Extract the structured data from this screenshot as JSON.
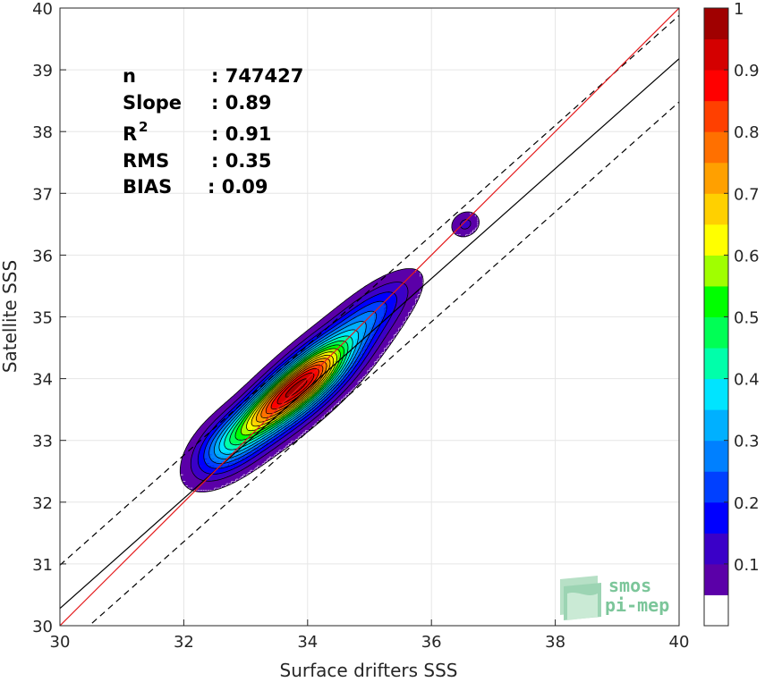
{
  "chart_data": {
    "type": "heatmap",
    "title": "",
    "xlabel": "Surface drifters SSS",
    "ylabel": "Satellite SSS",
    "xlim": [
      30,
      40
    ],
    "ylim": [
      30,
      40
    ],
    "x_ticks": [
      "30",
      "32",
      "34",
      "36",
      "38",
      "40"
    ],
    "y_ticks": [
      "30",
      "31",
      "32",
      "33",
      "34",
      "35",
      "36",
      "37",
      "38",
      "39",
      "40"
    ],
    "grid": true,
    "stats": [
      {
        "label": "n",
        "value": ": 747427"
      },
      {
        "label": "Slope",
        "value": ": 0.89"
      },
      {
        "label": "R",
        "sup": "2",
        "value": ": 0.91"
      },
      {
        "label": "RMS",
        "value": ": 0.35"
      },
      {
        "label": "BIAS",
        "value": ": 0.09"
      }
    ],
    "lines": {
      "identity": {
        "slope": 1.0,
        "intercept": 0.0,
        "color": "#e41a1c"
      },
      "fit": {
        "slope": 0.89,
        "intercept": 3.58,
        "color": "#000000"
      },
      "upper_dashed": {
        "slope": 0.89,
        "intercept": 4.28,
        "color": "#000000"
      },
      "lower_dashed": {
        "slope": 0.89,
        "intercept": 2.88,
        "color": "#000000"
      }
    },
    "density_blobs": [
      {
        "cx": 33.9,
        "cy": 33.85,
        "sx": 1.0,
        "sy": 0.28,
        "angle": 42,
        "amp": 0.55
      },
      {
        "cx": 34.05,
        "cy": 34.05,
        "sx": 0.5,
        "sy": 0.22,
        "angle": 42,
        "amp": 0.55
      },
      {
        "cx": 33.4,
        "cy": 33.55,
        "sx": 0.5,
        "sy": 0.2,
        "angle": 42,
        "amp": 0.5
      },
      {
        "cx": 32.7,
        "cy": 32.95,
        "sx": 0.45,
        "sy": 0.25,
        "angle": 42,
        "amp": 0.3
      },
      {
        "cx": 35.0,
        "cy": 35.05,
        "sx": 0.6,
        "sy": 0.22,
        "angle": 40,
        "amp": 0.2
      },
      {
        "cx": 36.55,
        "cy": 36.5,
        "sx": 0.17,
        "sy": 0.14,
        "angle": 30,
        "amp": 0.14
      }
    ],
    "colorbar": {
      "range": [
        0,
        1
      ],
      "ticks": [
        "0.1",
        "0.2",
        "0.3",
        "0.4",
        "0.5",
        "0.6",
        "0.7",
        "0.8",
        "0.9",
        "1"
      ],
      "colors": [
        "#ffffff",
        "#5b00a8",
        "#3a00c8",
        "#0000ff",
        "#0040ff",
        "#0080ff",
        "#00b0ff",
        "#00e4ff",
        "#00ffaa",
        "#00ff55",
        "#00ff00",
        "#a0ff00",
        "#ffff00",
        "#ffd000",
        "#ffa000",
        "#ff7000",
        "#ff4000",
        "#ff0000",
        "#d40000",
        "#a00000"
      ]
    },
    "logo": {
      "line1": "smos",
      "line2": "pi-mep"
    }
  }
}
